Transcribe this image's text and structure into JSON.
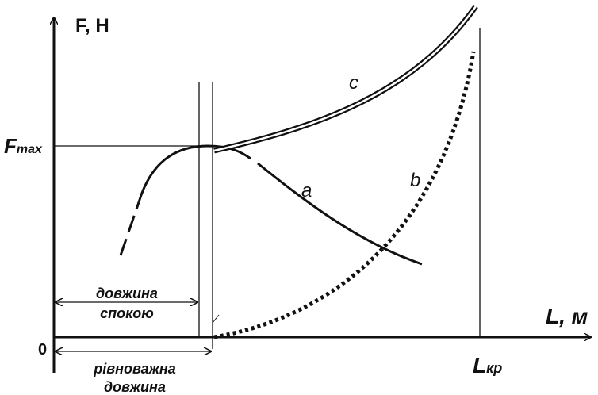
{
  "axes": {
    "y_label": "F, Н",
    "x_label": "L, м",
    "origin": "0"
  },
  "fmax": {
    "main": "F",
    "sub": "max"
  },
  "lcr": {
    "main": "L",
    "sub": "кр"
  },
  "curves": [
    {
      "label": "a"
    },
    {
      "label": "b"
    },
    {
      "label": "c"
    }
  ],
  "rest_length": {
    "line1": "довжина",
    "line2": "спокою"
  },
  "equilibrium_length": {
    "line1": "рівноважна",
    "line2": "довжина"
  }
}
